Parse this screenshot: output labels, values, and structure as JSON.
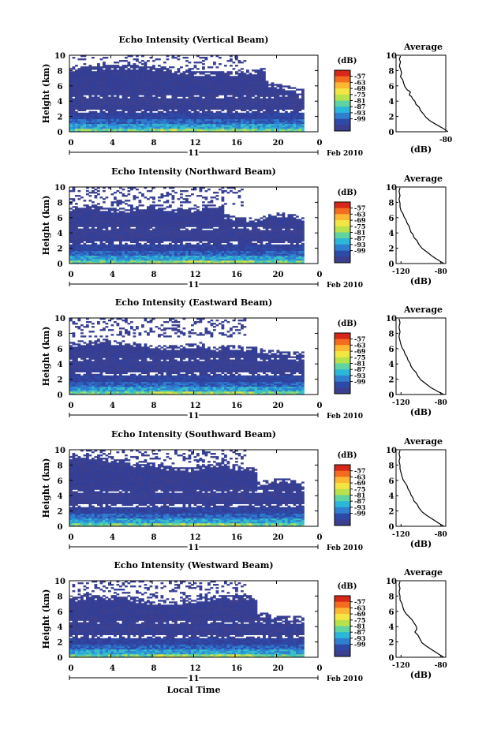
{
  "chart_data": {
    "type": "heatmap",
    "date_label": "Feb 2010",
    "day_label": "11",
    "x_ticks": [
      "0",
      "4",
      "8",
      "12",
      "16",
      "20",
      "0"
    ],
    "xlim_hours": [
      0,
      24
    ],
    "ylabel": "Height (km)",
    "y_ticks": [
      "0",
      "2",
      "4",
      "6",
      "8",
      "10"
    ],
    "ylim_km": [
      0,
      10
    ],
    "xlabel": "Local Time",
    "colorbar": {
      "unit_label": "(dB)",
      "levels": [
        "-57",
        "-63",
        "-69",
        "-75",
        "-81",
        "-87",
        "-93",
        "-99"
      ],
      "colors": [
        "#d62718",
        "#f46d1e",
        "#fdb833",
        "#f3e542",
        "#b8e24c",
        "#5fd3a0",
        "#2bb7d9",
        "#2f7fd0",
        "#2e4aa8",
        "#3a3f8f"
      ]
    },
    "average": {
      "title": "Average",
      "ylabel": "Height (km)",
      "xlabel": "(dB)",
      "y_ticks": [
        "0",
        "2",
        "4",
        "6",
        "8",
        "10"
      ]
    },
    "panels": [
      {
        "title": "Echo Intensity (Vertical Beam)",
        "avg_x_ticks": [
          "-80"
        ],
        "avg_xlim": [
          -125,
          -80
        ],
        "avg_profile": [
          [
            -78,
            0
          ],
          [
            -82,
            0.4
          ],
          [
            -88,
            0.9
          ],
          [
            -94,
            1.4
          ],
          [
            -98,
            1.9
          ],
          [
            -100,
            2.3
          ],
          [
            -103,
            2.8
          ],
          [
            -104,
            3.2
          ],
          [
            -107,
            3.6
          ],
          [
            -108,
            4.0
          ],
          [
            -110,
            4.3
          ],
          [
            -111,
            4.6
          ],
          [
            -113,
            4.8
          ],
          [
            -112,
            5.2
          ],
          [
            -115,
            5.5
          ],
          [
            -117,
            5.9
          ],
          [
            -118,
            6.3
          ],
          [
            -119,
            6.8
          ],
          [
            -121,
            7.2
          ],
          [
            -120,
            7.7
          ],
          [
            -121,
            8.2
          ],
          [
            -122,
            8.6
          ],
          [
            -121,
            9.1
          ],
          [
            -122,
            9.5
          ],
          [
            -121,
            9.9
          ]
        ]
      },
      {
        "title": "Echo Intensity (Northward Beam)",
        "avg_x_ticks": [
          "-120",
          "-80"
        ],
        "avg_xlim": [
          -125,
          -75
        ],
        "avg_profile": [
          [
            -77,
            0
          ],
          [
            -82,
            0.4
          ],
          [
            -88,
            0.9
          ],
          [
            -94,
            1.5
          ],
          [
            -99,
            2.0
          ],
          [
            -102,
            2.5
          ],
          [
            -104,
            3.0
          ],
          [
            -107,
            3.4
          ],
          [
            -108,
            3.8
          ],
          [
            -110,
            4.1
          ],
          [
            -111,
            4.5
          ],
          [
            -112,
            4.9
          ],
          [
            -114,
            5.3
          ],
          [
            -115,
            5.7
          ],
          [
            -117,
            6.1
          ],
          [
            -118,
            6.5
          ],
          [
            -120,
            6.9
          ],
          [
            -121,
            7.4
          ],
          [
            -121,
            7.9
          ],
          [
            -122,
            8.4
          ],
          [
            -121,
            8.9
          ],
          [
            -122,
            9.4
          ],
          [
            -121,
            9.9
          ]
        ]
      },
      {
        "title": "Echo Intensity (Eastward Beam)",
        "avg_x_ticks": [
          "-120",
          "-80"
        ],
        "avg_xlim": [
          -125,
          -75
        ],
        "avg_profile": [
          [
            -77,
            0
          ],
          [
            -83,
            0.4
          ],
          [
            -90,
            0.9
          ],
          [
            -95,
            1.4
          ],
          [
            -100,
            1.9
          ],
          [
            -103,
            2.4
          ],
          [
            -105,
            2.9
          ],
          [
            -108,
            3.3
          ],
          [
            -110,
            3.7
          ],
          [
            -111,
            4.1
          ],
          [
            -113,
            4.5
          ],
          [
            -114,
            4.9
          ],
          [
            -116,
            5.3
          ],
          [
            -117,
            5.7
          ],
          [
            -119,
            6.1
          ],
          [
            -120,
            6.5
          ],
          [
            -121,
            7.0
          ],
          [
            -122,
            7.6
          ],
          [
            -121,
            8.2
          ],
          [
            -122,
            8.8
          ],
          [
            -121,
            9.4
          ],
          [
            -122,
            9.9
          ]
        ]
      },
      {
        "title": "Echo Intensity (Southward Beam)",
        "avg_x_ticks": [
          "-120",
          "-80"
        ],
        "avg_xlim": [
          -125,
          -75
        ],
        "avg_profile": [
          [
            -77,
            0
          ],
          [
            -82,
            0.4
          ],
          [
            -88,
            0.9
          ],
          [
            -94,
            1.4
          ],
          [
            -99,
            1.9
          ],
          [
            -102,
            2.4
          ],
          [
            -104,
            2.9
          ],
          [
            -107,
            3.3
          ],
          [
            -108,
            3.7
          ],
          [
            -110,
            4.1
          ],
          [
            -111,
            4.5
          ],
          [
            -113,
            4.9
          ],
          [
            -114,
            5.3
          ],
          [
            -116,
            5.7
          ],
          [
            -118,
            6.1
          ],
          [
            -119,
            6.5
          ],
          [
            -120,
            7.0
          ],
          [
            -121,
            7.5
          ],
          [
            -121,
            8.0
          ],
          [
            -122,
            8.5
          ],
          [
            -121,
            9.0
          ],
          [
            -122,
            9.5
          ],
          [
            -121,
            9.9
          ]
        ]
      },
      {
        "title": "Echo Intensity (Westward Beam)",
        "avg_x_ticks": [
          "-120",
          "-80"
        ],
        "avg_xlim": [
          -125,
          -75
        ],
        "avg_profile": [
          [
            -77,
            0
          ],
          [
            -82,
            0.4
          ],
          [
            -88,
            0.9
          ],
          [
            -94,
            1.4
          ],
          [
            -99,
            1.9
          ],
          [
            -101,
            2.4
          ],
          [
            -103,
            2.9
          ],
          [
            -106,
            3.3
          ],
          [
            -104,
            3.7
          ],
          [
            -105,
            4.1
          ],
          [
            -107,
            4.5
          ],
          [
            -109,
            4.9
          ],
          [
            -112,
            5.3
          ],
          [
            -115,
            5.7
          ],
          [
            -117,
            6.1
          ],
          [
            -118,
            6.5
          ],
          [
            -119,
            7.0
          ],
          [
            -121,
            7.5
          ],
          [
            -121,
            8.0
          ],
          [
            -122,
            8.5
          ],
          [
            -121,
            9.0
          ],
          [
            -122,
            9.5
          ],
          [
            -121,
            9.9
          ]
        ]
      }
    ]
  }
}
